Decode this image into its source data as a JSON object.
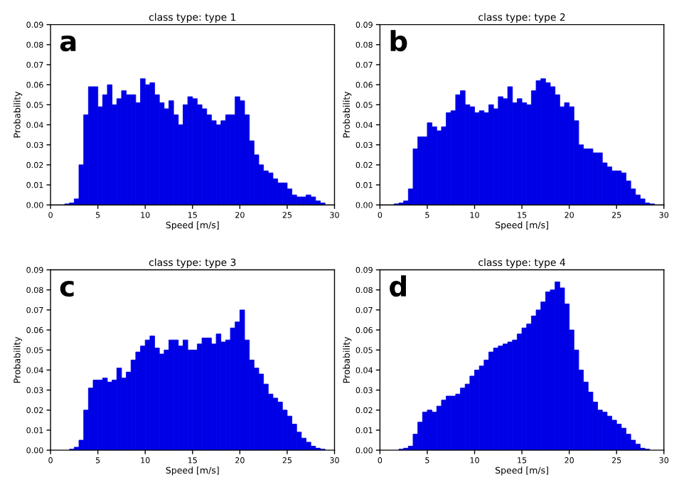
{
  "chart_data": [
    {
      "type": "histogram",
      "title": "class type: type 1",
      "xlabel": "Speed [m/s]",
      "ylabel": "Probability",
      "annotations": [
        "a"
      ],
      "color": "#0000e6",
      "bins": [
        1.5,
        2,
        2.5,
        3,
        3.5,
        4,
        4.5,
        5,
        5.5,
        6,
        6.5,
        7,
        7.5,
        8,
        8.5,
        9,
        9.5,
        10,
        10.5,
        11,
        11.5,
        12,
        12.5,
        13,
        13.5,
        14,
        14.5,
        15,
        15.5,
        16,
        16.5,
        17,
        17.5,
        18,
        18.5,
        19,
        19.5,
        20,
        20.5,
        21,
        21.5,
        22,
        22.5,
        23,
        23.5,
        24,
        24.5,
        25,
        25.5,
        26,
        26.5,
        27,
        27.5,
        28,
        28.5,
        29
      ],
      "values": [
        0.0005,
        0.001,
        0.003,
        0.02,
        0.045,
        0.059,
        0.059,
        0.049,
        0.055,
        0.06,
        0.05,
        0.053,
        0.057,
        0.055,
        0.055,
        0.051,
        0.063,
        0.06,
        0.061,
        0.055,
        0.051,
        0.048,
        0.052,
        0.045,
        0.04,
        0.05,
        0.054,
        0.053,
        0.05,
        0.048,
        0.045,
        0.042,
        0.04,
        0.042,
        0.045,
        0.045,
        0.054,
        0.052,
        0.045,
        0.032,
        0.025,
        0.02,
        0.017,
        0.016,
        0.013,
        0.011,
        0.011,
        0.008,
        0.005,
        0.004,
        0.004,
        0.005,
        0.004,
        0.002,
        0.001
      ],
      "xlim": [
        0,
        30
      ],
      "xticks": [
        0,
        5,
        10,
        15,
        20,
        25,
        30
      ],
      "ylim": [
        0,
        0.09
      ],
      "yticks": [
        {
          "value": 0,
          "label": "0.00"
        },
        {
          "value": 0.01,
          "label": "0.01"
        },
        {
          "value": 0.02,
          "label": "0.02"
        },
        {
          "value": 0.03,
          "label": "0.03"
        },
        {
          "value": 0.04,
          "label": "0.04"
        },
        {
          "value": 0.05,
          "label": "0.05"
        },
        {
          "value": 0.06,
          "label": "0.06"
        },
        {
          "value": 0.07,
          "label": "0.07"
        },
        {
          "value": 0.08,
          "label": "0.08"
        },
        {
          "value": 0.09,
          "label": "0.09"
        }
      ]
    },
    {
      "type": "histogram",
      "title": "class type: type 2",
      "xlabel": "Speed [m/s]",
      "ylabel": "Probability",
      "annotations": [
        "b"
      ],
      "color": "#0000e6",
      "bins": [
        1.5,
        2,
        2.5,
        3,
        3.5,
        4,
        4.5,
        5,
        5.5,
        6,
        6.5,
        7,
        7.5,
        8,
        8.5,
        9,
        9.5,
        10,
        10.5,
        11,
        11.5,
        12,
        12.5,
        13,
        13.5,
        14,
        14.5,
        15,
        15.5,
        16,
        16.5,
        17,
        17.5,
        18,
        18.5,
        19,
        19.5,
        20,
        20.5,
        21,
        21.5,
        22,
        22.5,
        23,
        23.5,
        24,
        24.5,
        25,
        25.5,
        26,
        26.5,
        27,
        27.5,
        28,
        28.5,
        29
      ],
      "values": [
        0.0005,
        0.001,
        0.002,
        0.008,
        0.028,
        0.034,
        0.034,
        0.041,
        0.039,
        0.037,
        0.039,
        0.046,
        0.047,
        0.055,
        0.057,
        0.05,
        0.049,
        0.046,
        0.047,
        0.046,
        0.05,
        0.048,
        0.054,
        0.053,
        0.059,
        0.051,
        0.053,
        0.051,
        0.05,
        0.057,
        0.062,
        0.063,
        0.061,
        0.059,
        0.055,
        0.049,
        0.051,
        0.049,
        0.042,
        0.03,
        0.028,
        0.028,
        0.026,
        0.026,
        0.021,
        0.019,
        0.017,
        0.017,
        0.016,
        0.012,
        0.008,
        0.005,
        0.003,
        0.001,
        0.0005
      ],
      "xlim": [
        0,
        30
      ],
      "xticks": [
        0,
        5,
        10,
        15,
        20,
        25,
        30
      ],
      "ylim": [
        0,
        0.09
      ],
      "yticks": [
        {
          "value": 0,
          "label": "0.00"
        },
        {
          "value": 0.01,
          "label": "0.01"
        },
        {
          "value": 0.02,
          "label": "0.02"
        },
        {
          "value": 0.03,
          "label": "0.03"
        },
        {
          "value": 0.04,
          "label": "0.04"
        },
        {
          "value": 0.05,
          "label": "0.05"
        },
        {
          "value": 0.06,
          "label": "0.06"
        },
        {
          "value": 0.07,
          "label": "0.07"
        },
        {
          "value": 0.08,
          "label": "0.08"
        },
        {
          "value": 0.09,
          "label": "0.09"
        }
      ]
    },
    {
      "type": "histogram",
      "title": "class type: type 3",
      "xlabel": "Speed [m/s]",
      "ylabel": "Probability",
      "annotations": [
        "c"
      ],
      "color": "#0000e6",
      "bins": [
        1.5,
        2,
        2.5,
        3,
        3.5,
        4,
        4.5,
        5,
        5.5,
        6,
        6.5,
        7,
        7.5,
        8,
        8.5,
        9,
        9.5,
        10,
        10.5,
        11,
        11.5,
        12,
        12.5,
        13,
        13.5,
        14,
        14.5,
        15,
        15.5,
        16,
        16.5,
        17,
        17.5,
        18,
        18.5,
        19,
        19.5,
        20,
        20.5,
        21,
        21.5,
        22,
        22.5,
        23,
        23.5,
        24,
        24.5,
        25,
        25.5,
        26,
        26.5,
        27,
        27.5,
        28,
        28.5,
        29
      ],
      "values": [
        null,
        0.0005,
        0.0015,
        0.005,
        0.02,
        0.031,
        0.035,
        0.035,
        0.036,
        0.034,
        0.035,
        0.041,
        0.036,
        0.039,
        0.045,
        0.049,
        0.052,
        0.055,
        0.057,
        0.051,
        0.048,
        0.05,
        0.055,
        0.055,
        0.052,
        0.055,
        0.05,
        0.05,
        0.053,
        0.056,
        0.056,
        0.053,
        0.058,
        0.054,
        0.055,
        0.061,
        0.064,
        0.07,
        0.055,
        0.045,
        0.041,
        0.038,
        0.033,
        0.028,
        0.026,
        0.024,
        0.02,
        0.017,
        0.013,
        0.009,
        0.006,
        0.004,
        0.002,
        0.001,
        0.0005
      ],
      "xlim": [
        0,
        30
      ],
      "xticks": [
        0,
        5,
        10,
        15,
        20,
        25,
        30
      ],
      "ylim": [
        0,
        0.09
      ],
      "yticks": [
        {
          "value": 0,
          "label": "0.00"
        },
        {
          "value": 0.01,
          "label": "0.01"
        },
        {
          "value": 0.02,
          "label": "0.02"
        },
        {
          "value": 0.03,
          "label": "0.03"
        },
        {
          "value": 0.04,
          "label": "0.04"
        },
        {
          "value": 0.05,
          "label": "0.05"
        },
        {
          "value": 0.06,
          "label": "0.06"
        },
        {
          "value": 0.07,
          "label": "0.07"
        },
        {
          "value": 0.08,
          "label": "0.08"
        },
        {
          "value": 0.09,
          "label": "0.09"
        }
      ]
    },
    {
      "type": "histogram",
      "title": "class type: type 4",
      "xlabel": "Speed [m/s]",
      "ylabel": "Probability",
      "annotations": [
        "d"
      ],
      "color": "#0000e6",
      "bins": [
        1.5,
        2,
        2.5,
        3,
        3.5,
        4,
        4.5,
        5,
        5.5,
        6,
        6.5,
        7,
        7.5,
        8,
        8.5,
        9,
        9.5,
        10,
        10.5,
        11,
        11.5,
        12,
        12.5,
        13,
        13.5,
        14,
        14.5,
        15,
        15.5,
        16,
        16.5,
        17,
        17.5,
        18,
        18.5,
        19,
        19.5,
        20,
        20.5,
        21,
        21.5,
        22,
        22.5,
        23,
        23.5,
        24,
        24.5,
        25,
        25.5,
        26,
        26.5,
        27,
        27.5,
        28,
        28.5,
        29
      ],
      "values": [
        null,
        0.0005,
        0.001,
        0.002,
        0.008,
        0.014,
        0.019,
        0.02,
        0.019,
        0.022,
        0.025,
        0.027,
        0.027,
        0.028,
        0.031,
        0.033,
        0.037,
        0.04,
        0.042,
        0.045,
        0.049,
        0.051,
        0.052,
        0.053,
        0.054,
        0.055,
        0.058,
        0.061,
        0.063,
        0.067,
        0.07,
        0.074,
        0.079,
        0.08,
        0.084,
        0.081,
        0.073,
        0.06,
        0.05,
        0.04,
        0.034,
        0.029,
        0.024,
        0.02,
        0.019,
        0.017,
        0.015,
        0.013,
        0.011,
        0.008,
        0.005,
        0.003,
        0.001,
        0.0005,
        null
      ],
      "xlim": [
        0,
        30
      ],
      "xticks": [
        0,
        5,
        10,
        15,
        20,
        25,
        30
      ],
      "ylim": [
        0,
        0.09
      ],
      "yticks": [
        {
          "value": 0,
          "label": "0.00"
        },
        {
          "value": 0.01,
          "label": "0.01"
        },
        {
          "value": 0.02,
          "label": "0.02"
        },
        {
          "value": 0.03,
          "label": "0.03"
        },
        {
          "value": 0.04,
          "label": "0.04"
        },
        {
          "value": 0.05,
          "label": "0.05"
        },
        {
          "value": 0.06,
          "label": "0.06"
        },
        {
          "value": 0.07,
          "label": "0.07"
        },
        {
          "value": 0.08,
          "label": "0.08"
        },
        {
          "value": 0.09,
          "label": "0.09"
        }
      ]
    }
  ]
}
